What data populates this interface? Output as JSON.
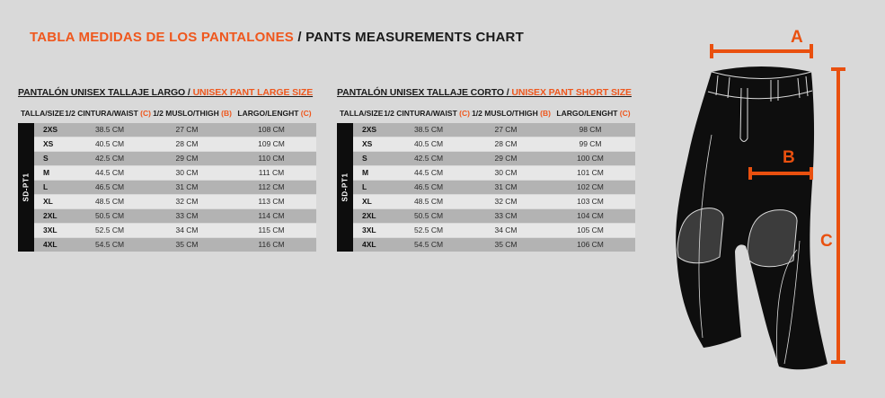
{
  "page": {
    "background": "#d9d9d9",
    "accent": "#ef571d",
    "text_color": "#1a1a1a"
  },
  "title": {
    "es": "TABLA MEDIDAS DE LOS PANTALONES",
    "sep": " / ",
    "en": "PANTS MEASUREMENTS CHART"
  },
  "tables": [
    {
      "heading_es": "PANTALÓN UNISEX TALLAJE LARGO / ",
      "heading_en": "UNISEX PANT LARGE SIZE",
      "side_label": "SD-PT1",
      "columns": [
        {
          "label": "TALLA/SIZE",
          "ref": ""
        },
        {
          "label": "1/2 CINTURA/WAIST",
          "ref": "(C)"
        },
        {
          "label": "1/2 MUSLO/THIGH",
          "ref": "(B)"
        },
        {
          "label": "LARGO/LENGHT",
          "ref": "(C)"
        }
      ],
      "rows": [
        {
          "size": "2XS",
          "waist": "38.5 CM",
          "thigh": "27 CM",
          "length": "108 CM"
        },
        {
          "size": "XS",
          "waist": "40.5 CM",
          "thigh": "28 CM",
          "length": "109 CM"
        },
        {
          "size": "S",
          "waist": "42.5 CM",
          "thigh": "29 CM",
          "length": "110 CM"
        },
        {
          "size": "M",
          "waist": "44.5 CM",
          "thigh": "30 CM",
          "length": "111 CM"
        },
        {
          "size": "L",
          "waist": "46.5 CM",
          "thigh": "31 CM",
          "length": "112 CM"
        },
        {
          "size": "XL",
          "waist": "48.5 CM",
          "thigh": "32 CM",
          "length": "113 CM"
        },
        {
          "size": "2XL",
          "waist": "50.5 CM",
          "thigh": "33 CM",
          "length": "114 CM"
        },
        {
          "size": "3XL",
          "waist": "52.5 CM",
          "thigh": "34 CM",
          "length": "115 CM"
        },
        {
          "size": "4XL",
          "waist": "54.5 CM",
          "thigh": "35 CM",
          "length": "116 CM"
        }
      ]
    },
    {
      "heading_es": "PANTALÓN UNISEX TALLAJE CORTO / ",
      "heading_en": "UNISEX PANT SHORT SIZE",
      "side_label": "SD-PT1",
      "columns": [
        {
          "label": "TALLA/SIZE",
          "ref": ""
        },
        {
          "label": "1/2 CINTURA/WAIST",
          "ref": "(C)"
        },
        {
          "label": "1/2 MUSLO/THIGH",
          "ref": "(B)"
        },
        {
          "label": "LARGO/LENGHT",
          "ref": "(C)"
        }
      ],
      "rows": [
        {
          "size": "2XS",
          "waist": "38.5 CM",
          "thigh": "27 CM",
          "length": "98 CM"
        },
        {
          "size": "XS",
          "waist": "40.5 CM",
          "thigh": "28 CM",
          "length": "99 CM"
        },
        {
          "size": "S",
          "waist": "42.5 CM",
          "thigh": "29 CM",
          "length": "100 CM"
        },
        {
          "size": "M",
          "waist": "44.5 CM",
          "thigh": "30 CM",
          "length": "101 CM"
        },
        {
          "size": "L",
          "waist": "46.5 CM",
          "thigh": "31 CM",
          "length": "102 CM"
        },
        {
          "size": "XL",
          "waist": "48.5 CM",
          "thigh": "32 CM",
          "length": "103 CM"
        },
        {
          "size": "2XL",
          "waist": "50.5 CM",
          "thigh": "33 CM",
          "length": "104 CM"
        },
        {
          "size": "3XL",
          "waist": "52.5 CM",
          "thigh": "34 CM",
          "length": "105 CM"
        },
        {
          "size": "4XL",
          "waist": "54.5 CM",
          "thigh": "35 CM",
          "length": "106 CM"
        }
      ]
    }
  ],
  "diagram": {
    "labels": {
      "a": "A",
      "b": "B",
      "c": "C"
    }
  },
  "chart_data": [
    {
      "type": "table",
      "title": "PANTALÓN UNISEX TALLAJE LARGO / UNISEX PANT LARGE SIZE",
      "columns": [
        "TALLA/SIZE",
        "1/2 CINTURA/WAIST (C)",
        "1/2 MUSLO/THIGH (B)",
        "LARGO/LENGHT (C)"
      ],
      "rows": [
        [
          "2XS",
          "38.5 CM",
          "27 CM",
          "108 CM"
        ],
        [
          "XS",
          "40.5 CM",
          "28 CM",
          "109 CM"
        ],
        [
          "S",
          "42.5 CM",
          "29 CM",
          "110 CM"
        ],
        [
          "M",
          "44.5 CM",
          "30 CM",
          "111 CM"
        ],
        [
          "L",
          "46.5 CM",
          "31 CM",
          "112 CM"
        ],
        [
          "XL",
          "48.5 CM",
          "32 CM",
          "113 CM"
        ],
        [
          "2XL",
          "50.5 CM",
          "33 CM",
          "114 CM"
        ],
        [
          "3XL",
          "52.5 CM",
          "34 CM",
          "115 CM"
        ],
        [
          "4XL",
          "54.5 CM",
          "35 CM",
          "116 CM"
        ]
      ]
    },
    {
      "type": "table",
      "title": "PANTALÓN UNISEX TALLAJE CORTO / UNISEX PANT SHORT SIZE",
      "columns": [
        "TALLA/SIZE",
        "1/2 CINTURA/WAIST (C)",
        "1/2 MUSLO/THIGH (B)",
        "LARGO/LENGHT (C)"
      ],
      "rows": [
        [
          "2XS",
          "38.5 CM",
          "27 CM",
          "98 CM"
        ],
        [
          "XS",
          "40.5 CM",
          "28 CM",
          "99 CM"
        ],
        [
          "S",
          "42.5 CM",
          "29 CM",
          "100 CM"
        ],
        [
          "M",
          "44.5 CM",
          "30 CM",
          "101 CM"
        ],
        [
          "L",
          "46.5 CM",
          "31 CM",
          "102 CM"
        ],
        [
          "XL",
          "48.5 CM",
          "32 CM",
          "103 CM"
        ],
        [
          "2XL",
          "50.5 CM",
          "33 CM",
          "104 CM"
        ],
        [
          "3XL",
          "52.5 CM",
          "34 CM",
          "105 CM"
        ],
        [
          "4XL",
          "54.5 CM",
          "35 CM",
          "106 CM"
        ]
      ]
    }
  ]
}
